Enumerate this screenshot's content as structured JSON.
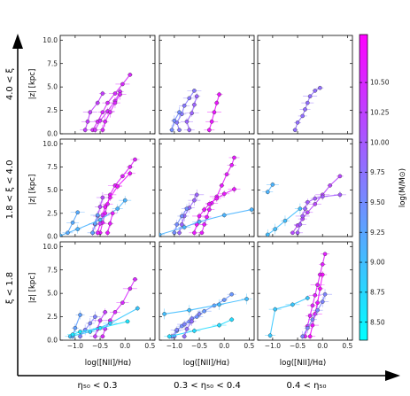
{
  "chart_data": {
    "type": "scatter",
    "layout": "3x3 small-multiples grid",
    "xlim": [
      -1.3,
      0.6
    ],
    "ylim": [
      0,
      10.5
    ],
    "x_ticks": [
      -1.0,
      -0.5,
      0.0,
      0.5
    ],
    "y_ticks": [
      0.0,
      2.5,
      5.0,
      7.5,
      10.0
    ],
    "x_tick_labels": [
      "−1.0",
      "−0.5",
      "0.0",
      "0.5"
    ],
    "y_tick_labels": [
      "0.0",
      "2.5",
      "5.0",
      "7.5",
      "10.0"
    ],
    "xlabel": "log([NII]/Hα)",
    "ylabel": "|z| [kpc]",
    "row_labels": [
      "4.0 < ξ",
      "1.8 < ξ < 4.0",
      "ξ < 1.8"
    ],
    "col_labels": [
      "η₅₀ < 0.3",
      "0.3 < η₅₀ < 0.4",
      "0.4 < η₅₀"
    ],
    "grid": false,
    "colorbar": {
      "label": "log(M/M⊙)",
      "range": [
        8.35,
        10.9
      ],
      "ticks": [
        8.5,
        8.75,
        9.0,
        9.25,
        9.5,
        9.75,
        10.0,
        10.25,
        10.5
      ],
      "tick_labels": [
        "8.50",
        "8.75",
        "9.00",
        "9.25",
        "9.50",
        "9.75",
        "10.00",
        "10.25",
        "10.50"
      ],
      "colors": [
        "#00ffff",
        "#ff00ff"
      ]
    },
    "panels": [
      {
        "row": 0,
        "col": 0,
        "series": [
          {
            "mass": 10.5,
            "x": [
              -0.65,
              -0.55,
              -0.45,
              -0.35,
              -0.2,
              -0.05,
              0.1
            ],
            "y": [
              0.4,
              1.3,
              2.3,
              3.3,
              4.3,
              5.3,
              6.3
            ]
          },
          {
            "mass": 10.45,
            "x": [
              -0.6,
              -0.5,
              -0.35,
              -0.2,
              -0.1
            ],
            "y": [
              0.4,
              1.4,
              2.4,
              3.5,
              4.5
            ]
          },
          {
            "mass": 10.55,
            "x": [
              -0.45,
              -0.4,
              -0.3,
              -0.2,
              -0.1
            ],
            "y": [
              0.4,
              1.3,
              2.3,
              3.3,
              4.2
            ]
          },
          {
            "mass": 10.3,
            "x": [
              -0.8,
              -0.75,
              -0.7,
              -0.55,
              -0.45
            ],
            "y": [
              0.4,
              1.3,
              2.3,
              3.3,
              4.3
            ]
          }
        ]
      },
      {
        "row": 0,
        "col": 1,
        "series": [
          {
            "mass": 9.7,
            "x": [
              -0.9,
              -0.95,
              -0.85,
              -0.8,
              -0.7,
              -0.6
            ],
            "y": [
              0.4,
              1.2,
              2.1,
              3.0,
              3.8,
              4.6
            ]
          },
          {
            "mass": 9.9,
            "x": [
              -0.7,
              -0.75,
              -0.65,
              -0.6,
              -0.55
            ],
            "y": [
              0.4,
              1.3,
              2.2,
              3.1,
              4.0
            ]
          },
          {
            "mass": 9.5,
            "x": [
              -1.05,
              -1.0,
              -0.9
            ],
            "y": [
              0.4,
              1.4,
              2.3
            ]
          },
          {
            "mass": 10.7,
            "x": [
              -0.3,
              -0.25,
              -0.2,
              -0.15,
              -0.1
            ],
            "y": [
              0.4,
              1.3,
              2.3,
              3.3,
              4.2
            ]
          }
        ]
      },
      {
        "row": 0,
        "col": 2,
        "series": [
          {
            "mass": 9.8,
            "x": [
              -0.55,
              -0.5,
              -0.4,
              -0.35,
              -0.3,
              -0.25,
              -0.15,
              -0.05
            ],
            "y": [
              0.4,
              1.2,
              1.9,
              2.6,
              3.3,
              4.0,
              4.6,
              4.9
            ]
          }
        ]
      },
      {
        "row": 1,
        "col": 0,
        "series": [
          {
            "mass": 10.6,
            "x": [
              -0.5,
              -0.45,
              -0.4,
              -0.35,
              -0.3,
              -0.2,
              -0.05,
              0.1,
              0.2
            ],
            "y": [
              0.4,
              1.5,
              2.5,
              3.5,
              4.5,
              5.5,
              6.5,
              7.5,
              8.3
            ]
          },
          {
            "mass": 10.75,
            "x": [
              -0.55,
              -0.5,
              -0.45,
              -0.4,
              -0.3,
              -0.15,
              0.1
            ],
            "y": [
              0.4,
              1.4,
              2.3,
              3.2,
              4.2,
              5.4,
              6.8
            ]
          },
          {
            "mass": 10.2,
            "x": [
              -0.65,
              -0.6,
              -0.55,
              -0.5,
              -0.45
            ],
            "y": [
              0.4,
              1.3,
              2.2,
              3.2,
              4.2
            ]
          },
          {
            "mass": 9.3,
            "x": [
              -0.65,
              -0.6,
              -0.55
            ],
            "y": [
              0.4,
              1.4,
              2.3
            ]
          },
          {
            "mass": 9.1,
            "x": [
              -1.3,
              -0.95,
              -0.5,
              -0.15,
              0.0
            ],
            "y": [
              0.1,
              0.8,
              1.8,
              3.0,
              3.9
            ]
          },
          {
            "mass": 9.2,
            "x": [
              -1.15,
              -1.05,
              -0.95
            ],
            "y": [
              0.4,
              1.5,
              2.6
            ]
          },
          {
            "mass": 10.65,
            "x": [
              -0.35,
              -0.3,
              -0.25
            ],
            "y": [
              0.4,
              1.4,
              2.5
            ]
          }
        ]
      },
      {
        "row": 1,
        "col": 1,
        "series": [
          {
            "mass": 10.65,
            "x": [
              -0.45,
              -0.4,
              -0.35,
              -0.3,
              -0.25,
              -0.15,
              -0.05,
              0.05,
              0.15,
              0.2
            ],
            "y": [
              0.4,
              1.3,
              2.1,
              2.9,
              3.6,
              4.3,
              5.5,
              6.7,
              7.7,
              8.5
            ]
          },
          {
            "mass": 10.7,
            "x": [
              -0.6,
              -0.55,
              -0.5,
              -0.4,
              -0.3,
              -0.15,
              0.0,
              0.2
            ],
            "y": [
              0.4,
              1.3,
              2.2,
              2.9,
              3.5,
              4.1,
              4.6,
              5.1
            ]
          },
          {
            "mass": 9.9,
            "x": [
              -0.9,
              -0.85,
              -0.8,
              -0.7,
              -0.6,
              -0.55
            ],
            "y": [
              0.4,
              1.3,
              2.2,
              3.1,
              3.9,
              4.5
            ]
          },
          {
            "mass": 9.1,
            "x": [
              -1.3,
              -0.8,
              -0.5,
              0.0,
              0.55
            ],
            "y": [
              0.2,
              1.0,
              1.6,
              2.3,
              2.9
            ]
          },
          {
            "mass": 9.5,
            "x": [
              -1.0,
              -0.95,
              -0.85,
              -0.75
            ],
            "y": [
              0.4,
              1.3,
              2.2,
              3.0
            ]
          }
        ]
      },
      {
        "row": 1,
        "col": 2,
        "series": [
          {
            "mass": 10.2,
            "x": [
              -0.6,
              -0.5,
              -0.4,
              -0.3,
              -0.15,
              0.0,
              0.15,
              0.35
            ],
            "y": [
              0.4,
              1.2,
              1.9,
              2.6,
              3.5,
              4.5,
              5.5,
              6.5
            ]
          },
          {
            "mass": 10.0,
            "x": [
              -0.5,
              -0.45,
              -0.4,
              -0.35,
              -0.3,
              -0.15,
              0.0,
              0.35
            ],
            "y": [
              0.4,
              1.3,
              2.2,
              3.0,
              3.7,
              4.1,
              4.3,
              4.5
            ]
          },
          {
            "mass": 9.0,
            "x": [
              -1.1,
              -0.95,
              -0.75,
              -0.45
            ],
            "y": [
              0.2,
              0.8,
              1.7,
              3.0
            ]
          },
          {
            "mass": 9.1,
            "x": [
              -1.1,
              -1.0
            ],
            "y": [
              4.8,
              5.6
            ]
          }
        ]
      },
      {
        "row": 2,
        "col": 0,
        "series": [
          {
            "mass": 10.5,
            "x": [
              -0.45,
              -0.4,
              -0.3,
              -0.2,
              -0.05,
              0.1,
              0.2
            ],
            "y": [
              0.4,
              1.2,
              2.1,
              3.0,
              4.0,
              5.5,
              6.5
            ]
          },
          {
            "mass": 10.3,
            "x": [
              -0.6,
              -0.55,
              -0.5,
              -0.4
            ],
            "y": [
              0.4,
              1.2,
              2.1,
              3.0
            ]
          },
          {
            "mass": 9.6,
            "x": [
              -0.9,
              -0.8,
              -0.7,
              -0.6
            ],
            "y": [
              0.4,
              1.1,
              1.8,
              2.5
            ]
          },
          {
            "mass": 8.9,
            "x": [
              -1.1,
              -0.7,
              -0.3,
              0.25
            ],
            "y": [
              0.4,
              0.9,
              1.8,
              3.4
            ]
          },
          {
            "mass": 9.3,
            "x": [
              -1.05,
              -1.0,
              -0.9
            ],
            "y": [
              0.4,
              1.3,
              2.7
            ]
          },
          {
            "mass": 8.6,
            "x": [
              -1.05,
              -0.9,
              -0.5,
              0.05
            ],
            "y": [
              0.6,
              0.9,
              1.3,
              2.0
            ]
          }
        ]
      },
      {
        "row": 2,
        "col": 1,
        "series": [
          {
            "mass": 9.4,
            "x": [
              -1.0,
              -0.95,
              -0.85,
              -0.7,
              -0.55,
              -0.4,
              -0.2,
              0.0,
              0.15
            ],
            "y": [
              0.4,
              1.0,
              1.5,
              2.0,
              2.5,
              3.1,
              3.7,
              4.3,
              4.9
            ]
          },
          {
            "mass": 9.6,
            "x": [
              -1.05,
              -0.95,
              -0.8,
              -0.65,
              -0.5
            ],
            "y": [
              0.4,
              1.1,
              1.7,
              2.3,
              2.8
            ]
          },
          {
            "mass": 9.0,
            "x": [
              -1.2,
              -0.7,
              -0.1,
              0.45
            ],
            "y": [
              2.8,
              3.2,
              3.8,
              4.4
            ]
          },
          {
            "mass": 8.7,
            "x": [
              -1.1,
              -0.6,
              -0.1,
              0.15
            ],
            "y": [
              0.4,
              1.0,
              1.6,
              2.2
            ]
          },
          {
            "mass": 9.8,
            "x": [
              -0.8,
              -0.75,
              -0.65
            ],
            "y": [
              0.4,
              1.2,
              2.0
            ]
          }
        ]
      },
      {
        "row": 2,
        "col": 2,
        "series": [
          {
            "mass": 10.6,
            "x": [
              -0.35,
              -0.3,
              -0.25,
              -0.2,
              -0.15,
              -0.1,
              -0.05,
              0.0,
              0.05
            ],
            "y": [
              0.4,
              1.5,
              2.6,
              3.7,
              4.8,
              5.9,
              7.0,
              8.1,
              9.2
            ]
          },
          {
            "mass": 10.8,
            "x": [
              -0.25,
              -0.2,
              -0.15,
              -0.1,
              -0.05,
              0.0
            ],
            "y": [
              0.4,
              1.6,
              2.8,
              4.0,
              5.5,
              7.0
            ]
          },
          {
            "mass": 9.6,
            "x": [
              -0.4,
              -0.3,
              -0.2,
              -0.1,
              0.0,
              0.05
            ],
            "y": [
              0.4,
              1.3,
              2.2,
              3.2,
              4.1,
              4.9
            ]
          },
          {
            "mass": 8.9,
            "x": [
              -1.05,
              -0.95,
              -0.6,
              -0.3
            ],
            "y": [
              0.5,
              3.3,
              3.8,
              4.5
            ]
          }
        ]
      }
    ]
  }
}
